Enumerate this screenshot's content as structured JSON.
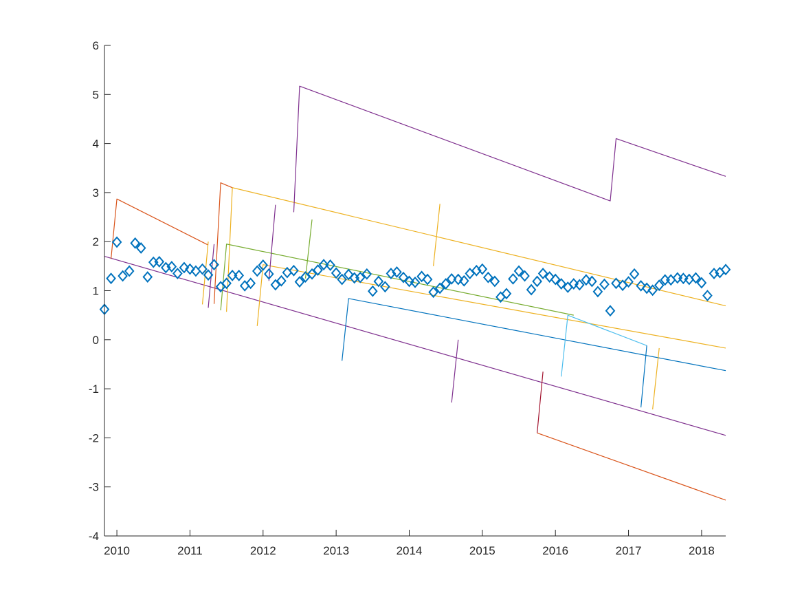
{
  "chart_data": {
    "type": "line",
    "title": "",
    "xlabel": "",
    "ylabel": "",
    "xlim": [
      2009.83,
      2018.33
    ],
    "ylim": [
      -4,
      6
    ],
    "grid": false,
    "x_ticks": [
      2010,
      2011,
      2012,
      2013,
      2014,
      2015,
      2016,
      2017,
      2018
    ],
    "x_tick_labels": [
      "2010",
      "2011",
      "2012",
      "2013",
      "2014",
      "2015",
      "2016",
      "2017",
      "2018"
    ],
    "y_ticks": [
      -4,
      -3,
      -2,
      -1,
      0,
      1,
      2,
      3,
      4,
      5,
      6
    ],
    "y_tick_labels": [
      "-4",
      "-3",
      "-2",
      "-1",
      "0",
      "1",
      "2",
      "3",
      "4",
      "5",
      "6"
    ],
    "series": [
      {
        "type": "scatter",
        "marker": "diamond",
        "color": "#0072BD",
        "x": [
          2009.83,
          2009.92,
          2010.0,
          2010.08,
          2010.17,
          2010.25,
          2010.33,
          2010.42,
          2010.5,
          2010.58,
          2010.67,
          2010.75,
          2010.83,
          2010.92,
          2011.0,
          2011.08,
          2011.17,
          2011.25,
          2011.33,
          2011.42,
          2011.5,
          2011.58,
          2011.67,
          2011.75,
          2011.83,
          2011.92,
          2012.0,
          2012.08,
          2012.17,
          2012.25,
          2012.33,
          2012.42,
          2012.5,
          2012.58,
          2012.67,
          2012.75,
          2012.83,
          2012.92,
          2013.0,
          2013.08,
          2013.17,
          2013.25,
          2013.33,
          2013.42,
          2013.5,
          2013.58,
          2013.67,
          2013.75,
          2013.83,
          2013.92,
          2014.0,
          2014.08,
          2014.17,
          2014.25,
          2014.33,
          2014.42,
          2014.5,
          2014.58,
          2014.67,
          2014.75,
          2014.83,
          2014.92,
          2015.0,
          2015.08,
          2015.17,
          2015.25,
          2015.33,
          2015.42,
          2015.5,
          2015.58,
          2015.67,
          2015.75,
          2015.83,
          2015.92,
          2016.0,
          2016.08,
          2016.17,
          2016.25,
          2016.33,
          2016.42,
          2016.5,
          2016.58,
          2016.67,
          2016.75,
          2016.83,
          2016.92,
          2017.0,
          2017.08,
          2017.17,
          2017.25,
          2017.33,
          2017.42,
          2017.5,
          2017.58,
          2017.67,
          2017.75,
          2017.83,
          2017.92,
          2018.0,
          2018.08,
          2018.17,
          2018.25,
          2018.33
        ],
        "y": [
          0.62,
          1.25,
          1.99,
          1.3,
          1.4,
          1.97,
          1.87,
          1.28,
          1.58,
          1.59,
          1.47,
          1.49,
          1.35,
          1.47,
          1.44,
          1.4,
          1.44,
          1.32,
          1.53,
          1.08,
          1.15,
          1.31,
          1.31,
          1.1,
          1.15,
          1.4,
          1.52,
          1.34,
          1.12,
          1.2,
          1.37,
          1.41,
          1.18,
          1.28,
          1.34,
          1.42,
          1.53,
          1.52,
          1.36,
          1.23,
          1.33,
          1.26,
          1.27,
          1.34,
          0.99,
          1.19,
          1.08,
          1.35,
          1.38,
          1.27,
          1.19,
          1.17,
          1.29,
          1.23,
          0.97,
          1.05,
          1.14,
          1.24,
          1.23,
          1.2,
          1.35,
          1.41,
          1.44,
          1.27,
          1.19,
          0.87,
          0.94,
          1.24,
          1.4,
          1.3,
          1.02,
          1.19,
          1.35,
          1.28,
          1.23,
          1.14,
          1.07,
          1.14,
          1.12,
          1.22,
          1.19,
          0.98,
          1.13,
          0.59,
          1.15,
          1.11,
          1.18,
          1.34,
          1.1,
          1.05,
          1.01,
          1.11,
          1.22,
          1.22,
          1.26,
          1.25,
          1.23,
          1.26,
          1.16,
          0.9,
          1.35,
          1.37,
          1.43
        ]
      },
      {
        "type": "line",
        "color": "#7E2F8E",
        "x": [
          2009.83,
          2018.33
        ],
        "y": [
          1.7,
          -1.95
        ]
      },
      {
        "type": "line",
        "color": "#D95319",
        "x": [
          2009.92,
          2010.0,
          2011.25
        ],
        "y": [
          1.65,
          2.87,
          1.93
        ]
      },
      {
        "type": "line",
        "color": "#EDB120",
        "x": [
          2011.17,
          2011.25
        ],
        "y": [
          0.72,
          2.0
        ]
      },
      {
        "type": "line",
        "color": "#D95319",
        "x": [
          2011.33,
          2011.42,
          2011.58
        ],
        "y": [
          0.73,
          3.2,
          3.1
        ]
      },
      {
        "type": "line",
        "color": "#7E2F8E",
        "x": [
          2011.25,
          2011.33
        ],
        "y": [
          0.65,
          1.95
        ]
      },
      {
        "type": "line",
        "color": "#EDB120",
        "x": [
          2011.5,
          2011.58,
          2018.33
        ],
        "y": [
          0.57,
          3.1,
          0.69
        ]
      },
      {
        "type": "line",
        "color": "#77AC30",
        "x": [
          2011.42,
          2011.5,
          2016.25
        ],
        "y": [
          0.6,
          1.95,
          0.5
        ]
      },
      {
        "type": "line",
        "color": "#EDB120",
        "x": [
          2011.92,
          2012.0,
          2018.33
        ],
        "y": [
          0.28,
          1.53,
          -0.17
        ]
      },
      {
        "type": "line",
        "color": "#7E2F8E",
        "x": [
          2012.08,
          2012.17
        ],
        "y": [
          1.2,
          2.75
        ]
      },
      {
        "type": "line",
        "color": "#77AC30",
        "x": [
          2012.58,
          2012.67
        ],
        "y": [
          1.25,
          2.45
        ]
      },
      {
        "type": "line",
        "color": "#7E2F8E",
        "x": [
          2012.42,
          2012.5,
          2016.75,
          2016.83,
          2018.33
        ],
        "y": [
          2.6,
          5.17,
          2.83,
          4.1,
          3.33
        ]
      },
      {
        "type": "line",
        "color": "#EDB120",
        "x": [
          2014.33,
          2014.42
        ],
        "y": [
          1.5,
          2.77
        ]
      },
      {
        "type": "line",
        "color": "#0072BD",
        "x": [
          2013.08,
          2013.17,
          2018.33
        ],
        "y": [
          -0.43,
          0.84,
          -0.63
        ]
      },
      {
        "type": "line",
        "color": "#7E2F8E",
        "x": [
          2014.58,
          2014.67
        ],
        "y": [
          -1.28,
          0.0
        ]
      },
      {
        "type": "line",
        "color": "#A2142F",
        "x": [
          2015.75,
          2015.83
        ],
        "y": [
          -1.9,
          -0.65
        ]
      },
      {
        "type": "line",
        "color": "#D95319",
        "x": [
          2015.75,
          2018.33
        ],
        "y": [
          -1.9,
          -3.27
        ]
      },
      {
        "type": "line",
        "color": "#4DBEEE",
        "x": [
          2016.08,
          2016.17,
          2017.25
        ],
        "y": [
          -0.75,
          0.5,
          -0.12
        ]
      },
      {
        "type": "line",
        "color": "#0072BD",
        "x": [
          2017.17,
          2017.25
        ],
        "y": [
          -1.38,
          -0.12
        ]
      },
      {
        "type": "line",
        "color": "#EDB120",
        "x": [
          2017.33,
          2017.42
        ],
        "y": [
          -1.42,
          -0.17
        ]
      }
    ]
  }
}
